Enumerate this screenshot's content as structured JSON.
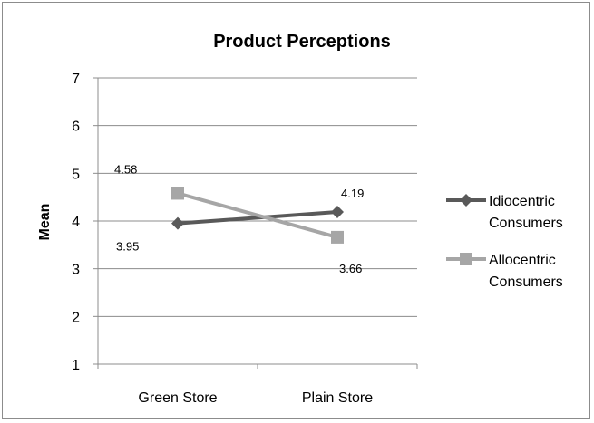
{
  "chart_data": {
    "type": "line",
    "title": "Product Perceptions",
    "xlabel": "",
    "ylabel": "Mean",
    "categories": [
      "Green Store",
      "Plain Store"
    ],
    "ylim": [
      1,
      7
    ],
    "yticks": [
      "1",
      "2",
      "3",
      "4",
      "5",
      "6",
      "7"
    ],
    "grid": true,
    "legend_position": "right",
    "series": [
      {
        "name": "Idiocentric Consumers",
        "name_lines": [
          "Idiocentric",
          "Consumers"
        ],
        "values": [
          3.95,
          4.19
        ],
        "labels": [
          "3.95",
          "4.19"
        ],
        "color": "#595959",
        "marker": "diamond"
      },
      {
        "name": "Allocentric Consumers",
        "name_lines": [
          "Allocentric",
          "Consumers"
        ],
        "values": [
          4.58,
          3.66
        ],
        "labels": [
          "4.58",
          "3.66"
        ],
        "color": "#a6a6a6",
        "marker": "square"
      }
    ]
  }
}
